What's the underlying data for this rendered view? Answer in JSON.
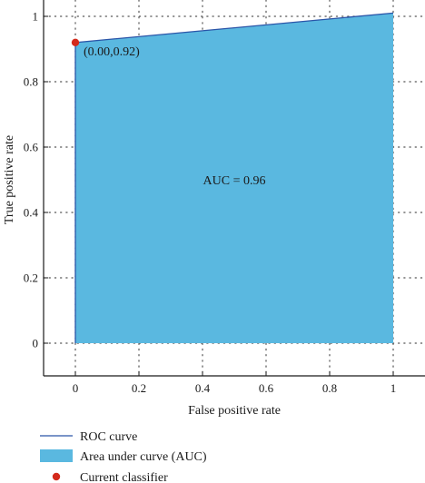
{
  "chart_data": {
    "type": "area",
    "xlabel": "False positive rate",
    "ylabel": "True positive rate",
    "xlim": [
      -0.1,
      1.1
    ],
    "ylim": [
      -0.1,
      1.05
    ],
    "xticks": [
      0,
      0.2,
      0.4,
      0.6,
      0.8,
      1
    ],
    "yticks": [
      0,
      0.2,
      0.4,
      0.6,
      0.8,
      1
    ],
    "xtick_labels": [
      "0",
      "0.2",
      "0.4",
      "0.6",
      "0.8",
      "1"
    ],
    "ytick_labels": [
      "0",
      "0.2",
      "0.4",
      "0.6",
      "0.8",
      "1"
    ],
    "grid": true,
    "series": [
      {
        "name": "ROC curve",
        "x": [
          0,
          0,
          1
        ],
        "y": [
          0,
          0.92,
          1.01
        ]
      }
    ],
    "auc_annotation": {
      "text": "AUC = 0.96",
      "x": 0.5,
      "y": 0.5
    },
    "current_classifier": {
      "x": 0,
      "y": 0.92,
      "label": "(0.00,0.92)"
    },
    "legend": {
      "placement": "bottom-left",
      "entries": [
        {
          "kind": "line",
          "label": "ROC curve"
        },
        {
          "kind": "area",
          "label": "Area under curve (AUC)"
        },
        {
          "kind": "point",
          "label": "Current classifier"
        }
      ]
    },
    "colors": {
      "curve": "#2a55a8",
      "area": "#5ab8e0",
      "point": "#d42a1c",
      "axis": "#1a1a1a",
      "grid": "#555555"
    }
  }
}
